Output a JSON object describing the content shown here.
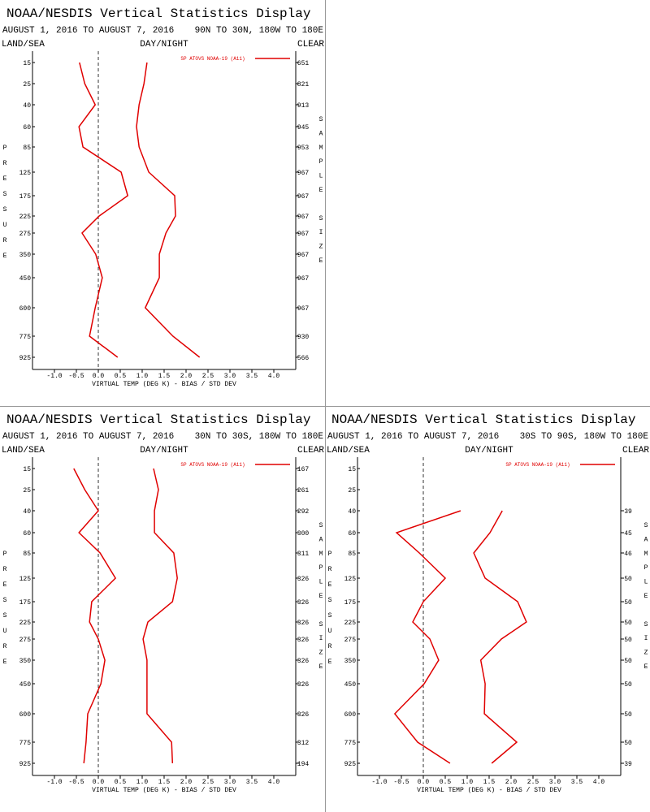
{
  "chart_data": [
    {
      "type": "line",
      "title": "NOAA/NESDIS Vertical Statistics Display",
      "subtitle": "AUGUST 1, 2016 TO AUGUST 7, 2016",
      "region": "90N TO 30N, 180W TO 180E",
      "land_sea": "LAND/SEA",
      "day_night": "DAY/NIGHT",
      "clear": "CLEAR",
      "y_label": "PRESSURE",
      "y2_label": "SAMPLE SIZE",
      "x_label": "VIRTUAL TEMP (DEG K) - BIAS / STD DEV",
      "categories": [
        15,
        25,
        40,
        60,
        85,
        125,
        175,
        225,
        275,
        350,
        450,
        600,
        775,
        925
      ],
      "sample_size": [
        651,
        821,
        913,
        945,
        953,
        967,
        967,
        967,
        967,
        967,
        967,
        967,
        930,
        566
      ],
      "xlim": [
        -1.5,
        4.5
      ],
      "xticks": [
        {
          "value": -1,
          "label": "-1.0"
        },
        {
          "value": -0.5,
          "label": "-0.5"
        },
        {
          "value": 0,
          "label": "0.0"
        },
        {
          "value": 0.5,
          "label": "0.5"
        },
        {
          "value": 1,
          "label": "1.0"
        },
        {
          "value": 1.5,
          "label": "1.5"
        },
        {
          "value": 2,
          "label": "2.0"
        },
        {
          "value": 2.5,
          "label": "2.5"
        },
        {
          "value": 3,
          "label": "3.0"
        },
        {
          "value": 3.5,
          "label": "3.5"
        },
        {
          "value": 4,
          "label": "4.0"
        }
      ],
      "series": [
        {
          "name": "SP ATOVS NOAA-19 (A11)",
          "color": "#e00000",
          "bias": [
            -0.43,
            -0.31,
            -0.07,
            -0.44,
            -0.35,
            0.52,
            0.67,
            0.02,
            -0.37,
            -0.06,
            0.09,
            -0.07,
            -0.2,
            0.44
          ],
          "std_dev": [
            1.11,
            1.04,
            0.93,
            0.87,
            0.93,
            1.15,
            1.74,
            1.76,
            1.54,
            1.39,
            1.39,
            1.07,
            1.7,
            2.31
          ]
        }
      ]
    },
    {
      "type": "line",
      "title": "NOAA/NESDIS Vertical Statistics Display",
      "subtitle": "AUGUST 1, 2016 TO AUGUST 7, 2016",
      "region": "30N TO 30S, 180W TO 180E",
      "land_sea": "LAND/SEA",
      "day_night": "DAY/NIGHT",
      "clear": "CLEAR",
      "y_label": "PRESSURE",
      "y2_label": "SAMPLE SIZE",
      "x_label": "VIRTUAL TEMP (DEG K) - BIAS / STD DEV",
      "categories": [
        15,
        25,
        40,
        60,
        85,
        125,
        175,
        225,
        275,
        350,
        450,
        600,
        775,
        925
      ],
      "sample_size": [
        167,
        261,
        292,
        300,
        311,
        326,
        326,
        326,
        326,
        326,
        326,
        326,
        312,
        194
      ],
      "xlim": [
        -1.5,
        4.5
      ],
      "xticks": [
        {
          "value": -1,
          "label": "-1.0"
        },
        {
          "value": -0.5,
          "label": "-0.5"
        },
        {
          "value": 0,
          "label": "0.0"
        },
        {
          "value": 0.5,
          "label": "0.5"
        },
        {
          "value": 1,
          "label": "1.0"
        },
        {
          "value": 1.5,
          "label": "1.5"
        },
        {
          "value": 2,
          "label": "2.0"
        },
        {
          "value": 2.5,
          "label": "2.5"
        },
        {
          "value": 3,
          "label": "3.0"
        },
        {
          "value": 3.5,
          "label": "3.5"
        },
        {
          "value": 4,
          "label": "4.0"
        }
      ],
      "series": [
        {
          "name": "SP ATOVS NOAA-19 (A11)",
          "color": "#e00000",
          "bias": [
            -0.56,
            -0.31,
            0,
            -0.44,
            0.04,
            0.39,
            -0.15,
            -0.2,
            0,
            0.15,
            0.06,
            -0.24,
            -0.28,
            -0.33
          ],
          "std_dev": [
            1.26,
            1.37,
            1.28,
            1.28,
            1.72,
            1.8,
            1.69,
            1.13,
            1.02,
            1.11,
            1.11,
            1.11,
            1.67,
            1.69
          ]
        }
      ]
    },
    {
      "type": "line",
      "title": "NOAA/NESDIS Vertical Statistics Display",
      "subtitle": "AUGUST 1, 2016 TO AUGUST 7, 2016",
      "region": "30S TO 90S, 180W TO 180E",
      "land_sea": "LAND/SEA",
      "day_night": "DAY/NIGHT",
      "clear": "CLEAR",
      "y_label": "PRESSURE",
      "y2_label": "SAMPLE SIZE",
      "x_label": "VIRTUAL TEMP (DEG K) - BIAS / STD DEV",
      "categories": [
        15,
        25,
        40,
        60,
        85,
        125,
        175,
        225,
        275,
        350,
        450,
        600,
        775,
        925
      ],
      "sample_size": [
        null,
        null,
        39,
        45,
        46,
        50,
        50,
        50,
        50,
        50,
        50,
        50,
        50,
        39
      ],
      "xlim": [
        -1.5,
        4.5
      ],
      "xticks": [
        {
          "value": -1,
          "label": "-1.0"
        },
        {
          "value": -0.5,
          "label": "-0.5"
        },
        {
          "value": 0,
          "label": "0.0"
        },
        {
          "value": 0.5,
          "label": "0.5"
        },
        {
          "value": 1,
          "label": "1.0"
        },
        {
          "value": 1.5,
          "label": "1.5"
        },
        {
          "value": 2,
          "label": "2.0"
        },
        {
          "value": 2.5,
          "label": "2.5"
        },
        {
          "value": 3,
          "label": "3.0"
        },
        {
          "value": 3.5,
          "label": "3.5"
        },
        {
          "value": 4,
          "label": "4.0"
        }
      ],
      "series": [
        {
          "name": "SP ATOVS NOAA-19 (A11)",
          "color": "#e00000",
          "bias": [
            null,
            null,
            0.85,
            -0.61,
            -0.09,
            0.5,
            0,
            -0.24,
            0.15,
            0.35,
            0.02,
            -0.65,
            -0.13,
            0.61
          ],
          "std_dev": [
            null,
            null,
            1.8,
            1.52,
            1.15,
            1.41,
            2.15,
            2.35,
            1.78,
            1.31,
            1.41,
            1.39,
            2.13,
            1.56
          ]
        }
      ]
    }
  ]
}
